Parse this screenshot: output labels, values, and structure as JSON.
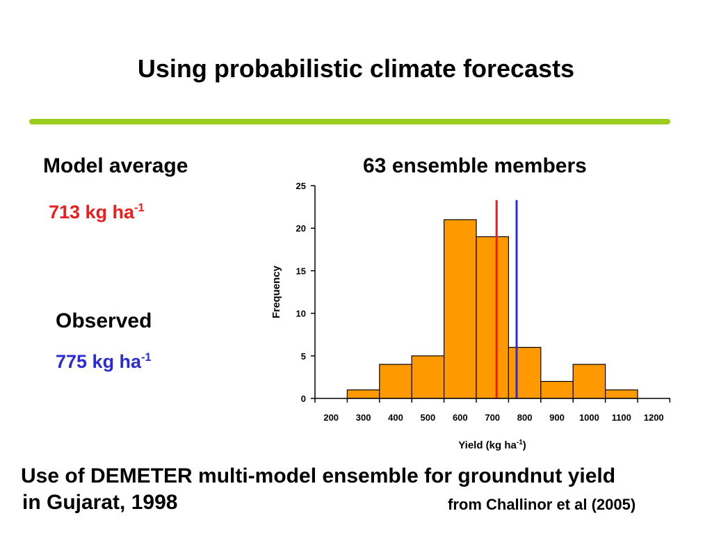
{
  "slide": {
    "title": "Using probabilistic climate forecasts",
    "accent_color": "#9acd1e"
  },
  "model_average": {
    "label": "Model average",
    "value_text": "713 kg ha",
    "value_exp": "-1",
    "color": "#ee1c1c"
  },
  "observed": {
    "label": "Observed",
    "value_text": "775 kg ha",
    "value_exp": "-1",
    "color": "#2b2bd6"
  },
  "ensemble_label": "63 ensemble members",
  "caption": {
    "line1": "Use of DEMETER multi-model ensemble for groundnut yield",
    "line2": "in Gujarat, 1998",
    "source": "from Challinor et al (2005)"
  },
  "chart_data": {
    "type": "bar",
    "xlabel": "Yield (kg ha",
    "xlabel_exp": "-1",
    "xlabel_suffix": ")",
    "ylabel": "Frequency",
    "categories": [
      "200",
      "300",
      "400",
      "500",
      "600",
      "700",
      "800",
      "900",
      "1000",
      "1100",
      "1200"
    ],
    "values": [
      0,
      1,
      4,
      5,
      21,
      19,
      6,
      2,
      4,
      1,
      0
    ],
    "ylim": [
      0,
      25
    ],
    "yticks": [
      0,
      5,
      10,
      15,
      20,
      25
    ],
    "bar_color": "#ff9900",
    "grid": false,
    "reference_lines": [
      {
        "name": "Model average",
        "x": 713,
        "color": "#ee1c1c"
      },
      {
        "name": "Observed",
        "x": 775,
        "color": "#2b2bd6"
      }
    ]
  }
}
